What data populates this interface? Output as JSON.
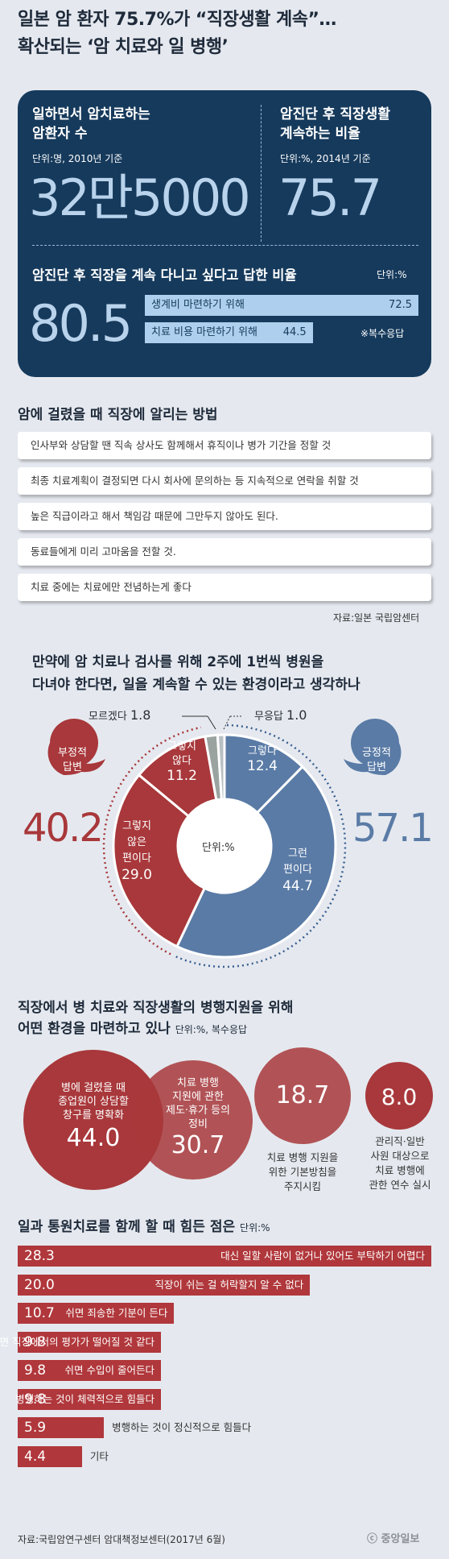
{
  "header": {
    "title_line1": "일본 암 환자 75.7%가 “직장생활 계속”…",
    "title_line2": "확산되는 ‘암 치료와 일 병행’"
  },
  "stats": {
    "patients_label_1": "일하면서 암치료하는",
    "patients_label_2": "암환자 수",
    "patients_unit": "단위:명, 2010년 기준",
    "patients_value": "32만5000",
    "continue_label_1": "암진단 후 직장생활",
    "continue_label_2": "계속하는 비율",
    "continue_unit": "단위:%, 2014년 기준",
    "continue_value": "75.7",
    "want_label": "암진단 후 직장을 계속 다니고 싶다고 답한 비율",
    "want_unit": "단위:%",
    "want_value": "80.5",
    "reasons": [
      {
        "label": "생계비 마련하기 위해",
        "value": "72.5",
        "num": 72.5
      },
      {
        "label": "치료 비용 마련하기 위해",
        "value": "44.5",
        "num": 44.5
      }
    ],
    "multi_note": "※복수응답"
  },
  "methods": {
    "title": "암에 걸렸을 때 직장에 알리는 방법",
    "items": [
      "인사부와 상담할 땐 직속 상사도 함께해서 휴직이나 병가 기간을 정할 것",
      "최종 치료계획이 결정되면 다시 회사에 문의하는 등 지속적으로 연락을 취할 것",
      "높은 직급이라고 해서 책임감 때문에 그만두지 않아도 된다.",
      "동료들에게 미리 고마움을 전할 것.",
      "치료 중에는 치료에만 전념하는게 좋다"
    ],
    "source": "자료:일본 국립암센터"
  },
  "chart_data": [
    {
      "type": "pie",
      "title": "만약에 암 치료나 검사를 위해 2주에 1번씩 병원을 다녀야 한다면, 일을 계속할 수 있는 환경이라고 생각하나",
      "unit": "단위:%",
      "slices": [
        {
          "label": "그렇다",
          "value": 12.4,
          "color": "#5a7ba6"
        },
        {
          "label": "그런 편이다",
          "value": 44.7,
          "color": "#5a7ba6"
        },
        {
          "label": "그렇지 않은 편이다",
          "value": 29.0,
          "color": "#a8383b"
        },
        {
          "label": "그렇지 않다",
          "value": 11.2,
          "color": "#a8383b"
        },
        {
          "label": "모르겠다",
          "value": 1.8,
          "color": "#9aa3a0"
        },
        {
          "label": "무응답",
          "value": 1.0,
          "color": "#b9c0c4"
        }
      ],
      "groups": [
        {
          "label": "긍정적 답변",
          "value": 57.1,
          "color": "#5a7ba6"
        },
        {
          "label": "부정적 답변",
          "value": 40.2,
          "color": "#a8383b"
        }
      ]
    },
    {
      "type": "bubble",
      "title": "직장에서 병 치료와 직장생활의 병행지원을 위해 어떤 환경을 마련하고 있나",
      "unit": "단위:%, 복수응답",
      "categories": [
        "병에 걸렸을 때 종업원이 상담할 창구를 명확화",
        "치료 병행 지원에 관한 제도·휴가 등의 정비",
        "치료 병행 지원을 위한 기본방침을 주지시킴",
        "관리직·일반 사원 대상으로 치료 병행에 관한 연수 실시"
      ],
      "values": [
        44.0,
        30.7,
        18.7,
        8.0
      ]
    },
    {
      "type": "bar",
      "title": "일과 통원치료를 함께 할 때 힘든 점은",
      "unit": "단위:%",
      "categories": [
        "대신 일할 사람이 없거나 있어도 부탁하기 어렵다",
        "직장이 쉬는 걸 허락할지 알 수 없다",
        "쉬면 죄송한 기분이 든다",
        "쉬면 직장에서의 평가가 떨어질 것 같다",
        "쉬면 수입이 줄어든다",
        "병행하는 것이 체력적으로 힘들다",
        "병행하는 것이 정신적으로 힘들다",
        "기타"
      ],
      "values": [
        28.3,
        20.0,
        10.7,
        9.8,
        9.8,
        9.8,
        5.9,
        4.4
      ],
      "labels": [
        "28.3",
        "20.0",
        "10.7",
        "9.8",
        "9.8",
        "9.8",
        "5.9",
        "4.4"
      ]
    }
  ],
  "donut_text": {
    "title_line1": "만약에 암 치료나 검사를 위해 2주에 1번씩 병원을",
    "title_line2": "다녀야 한다면, 일을 계속할 수 있는 환경이라고 생각하나",
    "center_unit": "단위:%",
    "s1_a": "그렇다",
    "s1_v": "12.4",
    "s2_a": "그런",
    "s2_b": "편이다",
    "s2_v": "44.7",
    "s3_a": "그렇지",
    "s3_b": "않은",
    "s3_c": "편이다",
    "s3_v": "29.0",
    "s4_a": "그렇지",
    "s4_b": "않다",
    "s4_v": "11.2",
    "dk_label": "모르겠다",
    "dk_value": "1.8",
    "na_label": "무응답",
    "na_value": "1.0",
    "neg_a": "부정적",
    "neg_b": "답변",
    "neg_v": "40.2",
    "pos_a": "긍정적",
    "pos_b": "답변",
    "pos_v": "57.1"
  },
  "bubble_text": {
    "title_line1": "직장에서 병 치료와 직장생활의 병행지원을 위해",
    "title_line2": "어떤 환경을 마련하고 있나",
    "unit": "단위:%, 복수응답",
    "b1_a": "병에 걸렸을 때",
    "b1_b": "종업원이 상담할",
    "b1_c": "창구를 명확화",
    "b1_v": "44.0",
    "b2_a": "치료 병행",
    "b2_b": "지원에 관한",
    "b2_c": "제도·휴가 등의",
    "b2_d": "정비",
    "b2_v": "30.7",
    "b3_v": "18.7",
    "b3_a": "치료 병행 지원을",
    "b3_b": "위한 기본방침을",
    "b3_c": "주지시킴",
    "b4_v": "8.0",
    "b4_a": "관리직·일반",
    "b4_b": "사원 대상으로",
    "b4_c": "치료 병행에",
    "b4_d": "관한 연수 실시"
  },
  "bars_text": {
    "title": "일과 통원치료를 함께 할 때 힘든 점은",
    "unit": "단위:%",
    "source": "자료:국립암연구센터 암대책정보센터(2017년 6월)",
    "logo": "중앙일보"
  },
  "colors": {
    "navy": "#163a5c",
    "red": "#a8383b",
    "blue": "#5a7ba6",
    "light_blue": "#aed0ee"
  }
}
